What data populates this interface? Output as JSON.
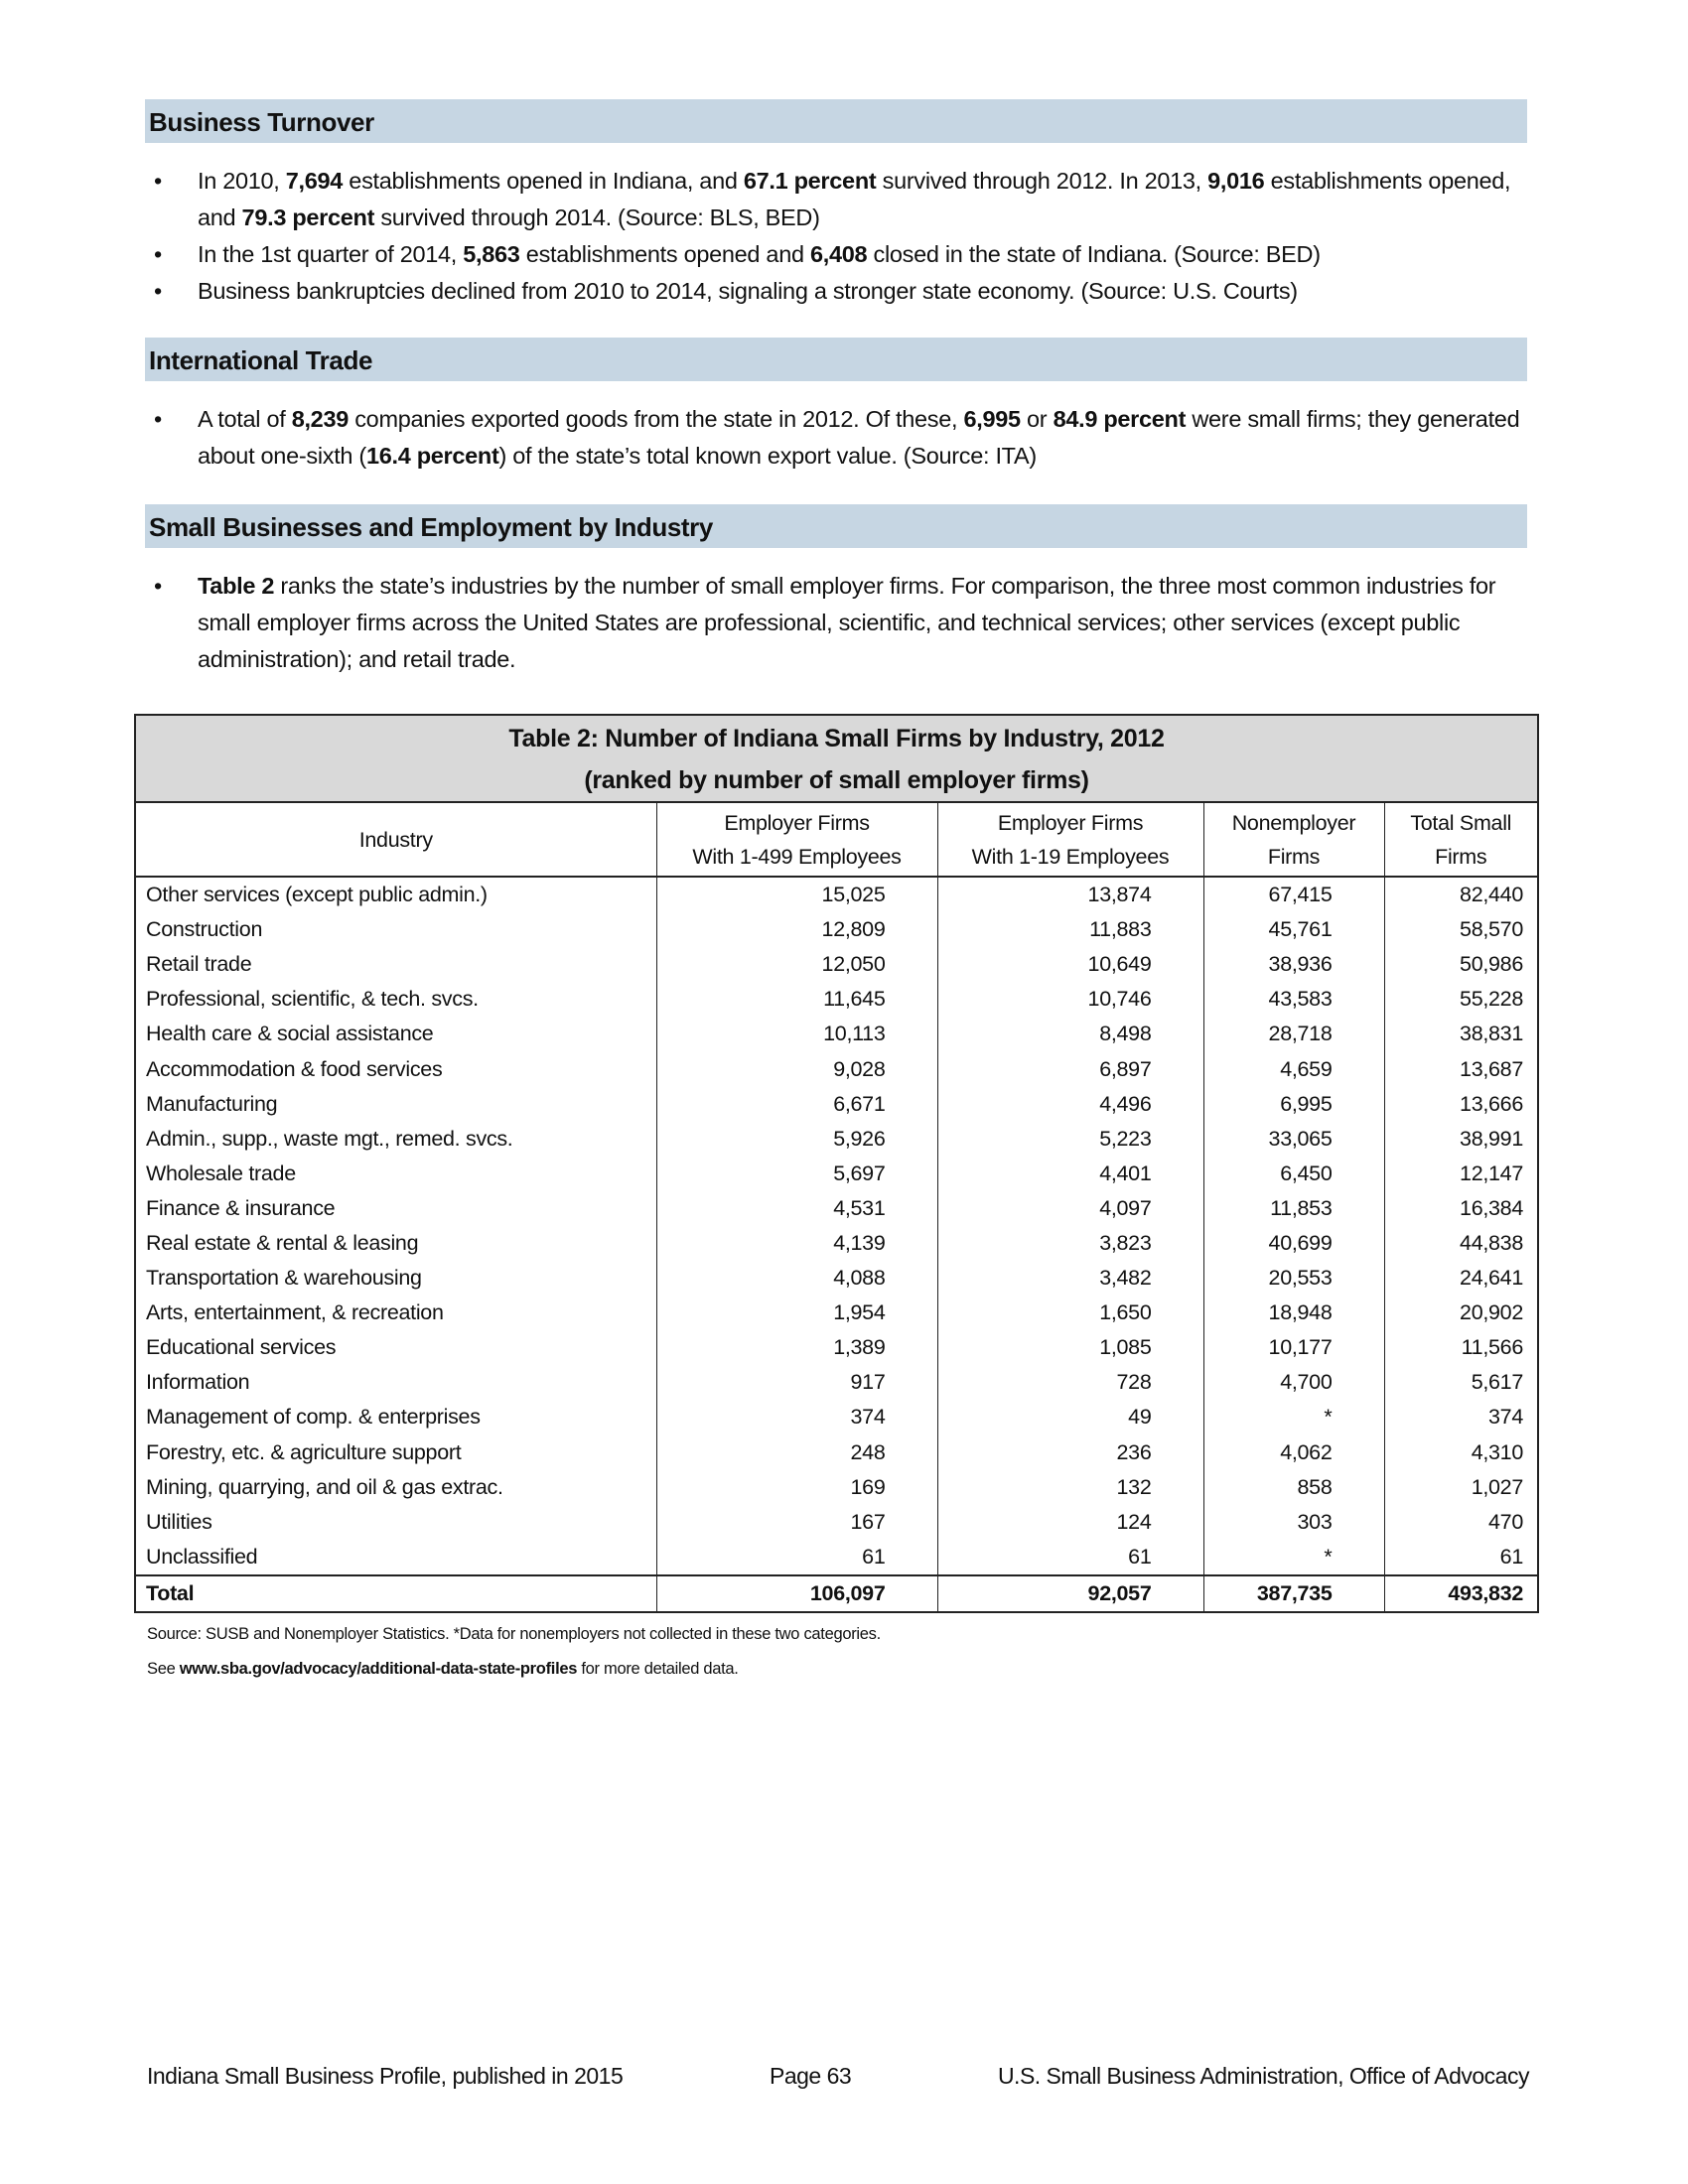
{
  "sections": {
    "turnover": {
      "heading": "Business Turnover",
      "bullets": [
        [
          "In 2010, ",
          "7,694",
          " establishments opened in Indiana, and ",
          "67.1 percent",
          " survived through 2012. In 2013, ",
          "9,016",
          " establishments opened, and ",
          "79.3 percent",
          " survived through 2014. (Source: BLS, BED)"
        ],
        [
          "In the 1st quarter of 2014, ",
          "5,863",
          " establishments opened and ",
          "6,408",
          " closed in the state of Indiana. (Source: BED)"
        ],
        [
          "Business bankruptcies declined from 2010 to 2014, signaling a stronger state economy. (Source: U.S. Courts)"
        ]
      ]
    },
    "trade": {
      "heading": "International Trade",
      "bullets": [
        [
          "A total of ",
          "8,239",
          " companies exported goods from the state in 2012. Of these, ",
          "6,995",
          " or ",
          "84.9 percent",
          " were small firms; they generated about one-sixth (",
          "16.4 percent",
          ") of the state’s total known export value. (Source: ITA)"
        ]
      ]
    },
    "industry": {
      "heading": "Small Businesses and Employment by Industry",
      "bullets": [
        [
          "",
          "Table 2",
          " ranks the state’s industries by the number of small employer firms. For comparison, the three most common industries for small employer firms across the United States are professional, scientific, and technical services; other services (except public administration); and retail trade."
        ]
      ]
    }
  },
  "bullet_glyph": "•",
  "table": {
    "title_line1": "Table 2: Number of Indiana Small Firms by Industry, 2012",
    "title_line2": "(ranked by number of small employer firms)",
    "headers": [
      [
        "Industry"
      ],
      [
        "Employer Firms",
        "With 1-499 Employees"
      ],
      [
        "Employer Firms",
        "With 1-19 Employees"
      ],
      [
        "Nonemployer",
        "Firms"
      ],
      [
        "Total Small",
        "Firms"
      ]
    ],
    "rows": [
      [
        "Other services (except public admin.)",
        "15,025",
        "13,874",
        "67,415",
        "82,440"
      ],
      [
        "Construction",
        "12,809",
        "11,883",
        "45,761",
        "58,570"
      ],
      [
        "Retail trade",
        "12,050",
        "10,649",
        "38,936",
        "50,986"
      ],
      [
        "Professional, scientific, & tech. svcs.",
        "11,645",
        "10,746",
        "43,583",
        "55,228"
      ],
      [
        "Health care & social assistance",
        "10,113",
        "8,498",
        "28,718",
        "38,831"
      ],
      [
        "Accommodation & food services",
        "9,028",
        "6,897",
        "4,659",
        "13,687"
      ],
      [
        "Manufacturing",
        "6,671",
        "4,496",
        "6,995",
        "13,666"
      ],
      [
        "Admin., supp., waste mgt., remed. svcs.",
        "5,926",
        "5,223",
        "33,065",
        "38,991"
      ],
      [
        "Wholesale trade",
        "5,697",
        "4,401",
        "6,450",
        "12,147"
      ],
      [
        "Finance & insurance",
        "4,531",
        "4,097",
        "11,853",
        "16,384"
      ],
      [
        "Real estate & rental & leasing",
        "4,139",
        "3,823",
        "40,699",
        "44,838"
      ],
      [
        "Transportation & warehousing",
        "4,088",
        "3,482",
        "20,553",
        "24,641"
      ],
      [
        "Arts, entertainment, & recreation",
        "1,954",
        "1,650",
        "18,948",
        "20,902"
      ],
      [
        "Educational services",
        "1,389",
        "1,085",
        "10,177",
        "11,566"
      ],
      [
        "Information",
        "917",
        "728",
        "4,700",
        "5,617"
      ],
      [
        "Management of comp. & enterprises",
        "374",
        "49",
        "*",
        "374"
      ],
      [
        "Forestry, etc. & agriculture support",
        "248",
        "236",
        "4,062",
        "4,310"
      ],
      [
        "Mining, quarrying, and oil & gas extrac.",
        "169",
        "132",
        "858",
        "1,027"
      ],
      [
        "Utilities",
        "167",
        "124",
        "303",
        "470"
      ],
      [
        "Unclassified",
        "61",
        "61",
        "*",
        "61"
      ]
    ],
    "total": [
      "Total",
      "106,097",
      "92,057",
      "387,735",
      "493,832"
    ]
  },
  "notes": {
    "source": "Source: SUSB and Nonemployer Statistics. *Data for nonemployers not collected in these two categories.",
    "see_pre": "See ",
    "see_link": "www.sba.gov/advocacy/additional-data-state-profiles",
    "see_post": " for more detailed data."
  },
  "footer": {
    "left": "Indiana Small Business Profile, published in 2015",
    "center": "Page 63",
    "right": "U.S. Small Business Administration, Office of Advocacy"
  }
}
